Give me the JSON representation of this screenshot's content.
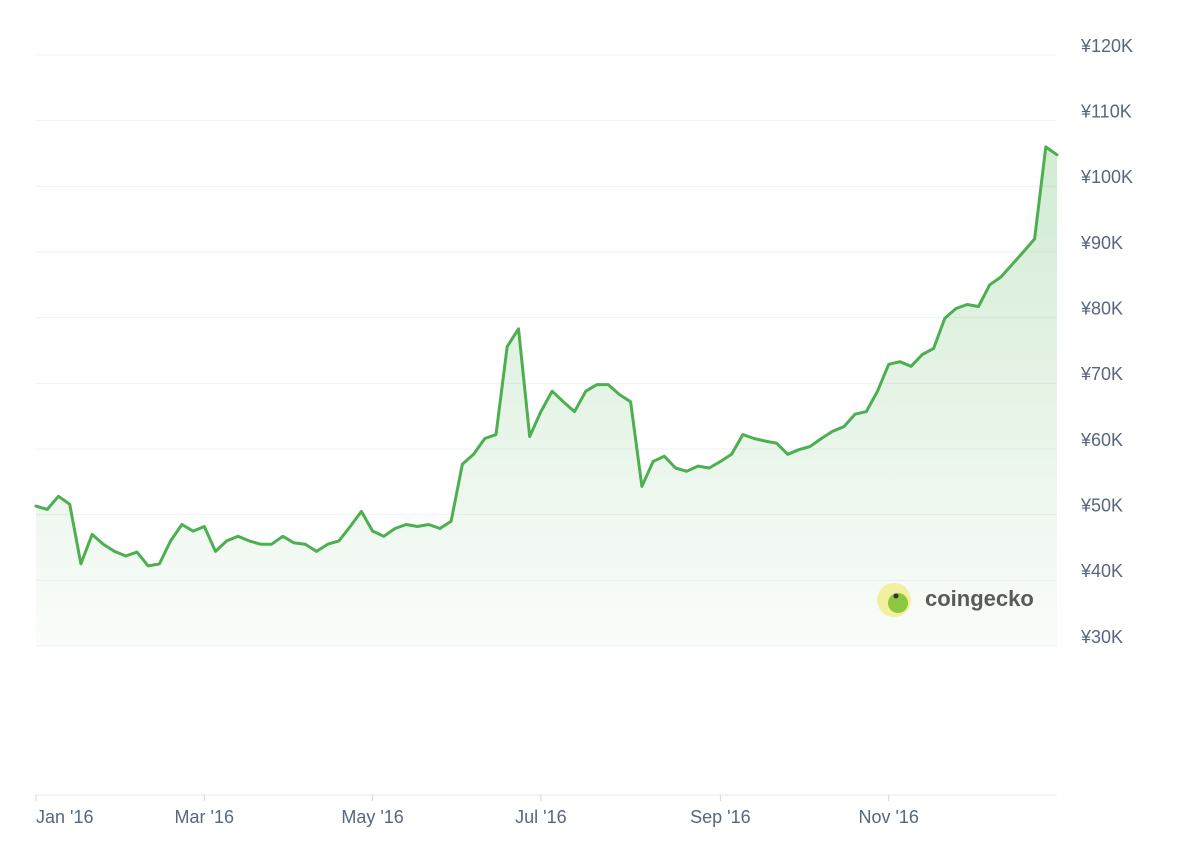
{
  "chart_data": {
    "type": "line",
    "categories": [
      "Jan '16",
      null,
      null,
      null,
      null,
      null,
      null,
      null,
      null,
      null,
      null,
      null,
      null,
      null,
      null,
      "Mar '16",
      null,
      null,
      null,
      null,
      null,
      null,
      null,
      null,
      null,
      null,
      null,
      null,
      null,
      null,
      "May '16",
      null,
      null,
      null,
      null,
      null,
      null,
      null,
      null,
      null,
      null,
      null,
      null,
      null,
      null,
      "Jul '16",
      null,
      null,
      null,
      null,
      null,
      null,
      null,
      null,
      null,
      null,
      null,
      null,
      null,
      null,
      null,
      "Sep '16",
      null,
      null,
      null,
      null,
      null,
      null,
      null,
      null,
      null,
      null,
      null,
      null,
      null,
      null,
      "Nov '16",
      null,
      null,
      null,
      null,
      null,
      null,
      null,
      null,
      null,
      null,
      null,
      null,
      null,
      null,
      null
    ],
    "values": [
      51300,
      50800,
      52800,
      51600,
      42500,
      47000,
      45500,
      44400,
      43700,
      44300,
      42200,
      42500,
      46000,
      48500,
      47500,
      48200,
      44400,
      46000,
      46700,
      46000,
      45500,
      45500,
      46700,
      45700,
      45500,
      44400,
      45500,
      46000,
      48200,
      50500,
      47500,
      46700,
      47900,
      48500,
      48200,
      48500,
      47900,
      49000,
      57700,
      59200,
      61600,
      62200,
      75600,
      78300,
      61900,
      65700,
      68800,
      67200,
      65700,
      68800,
      69800,
      69800,
      68300,
      67200,
      54300,
      58100,
      58900,
      57100,
      56600,
      57400,
      57100,
      58100,
      59200,
      62200,
      61600,
      61200,
      60900,
      59200,
      59900,
      60400,
      61600,
      62700,
      63400,
      65300,
      65700,
      68800,
      72900,
      73300,
      72600,
      74400,
      75300,
      79900,
      81400,
      82000,
      81700,
      85000,
      86200,
      88100,
      90000,
      92000,
      106000,
      104800
    ],
    "color": "#4caf50",
    "ylim": [
      30000,
      120000
    ],
    "yticks": [
      {
        "value": 30000,
        "label": "¥30K"
      },
      {
        "value": 40000,
        "label": "¥40K"
      },
      {
        "value": 50000,
        "label": "¥50K"
      },
      {
        "value": 60000,
        "label": "¥60K"
      },
      {
        "value": 70000,
        "label": "¥70K"
      },
      {
        "value": 80000,
        "label": "¥80K"
      },
      {
        "value": 90000,
        "label": "¥90K"
      },
      {
        "value": 100000,
        "label": "¥100K"
      },
      {
        "value": 110000,
        "label": "¥110K"
      },
      {
        "value": 120000,
        "label": "¥120K"
      }
    ],
    "grid": true,
    "watermark": "coingecko"
  }
}
